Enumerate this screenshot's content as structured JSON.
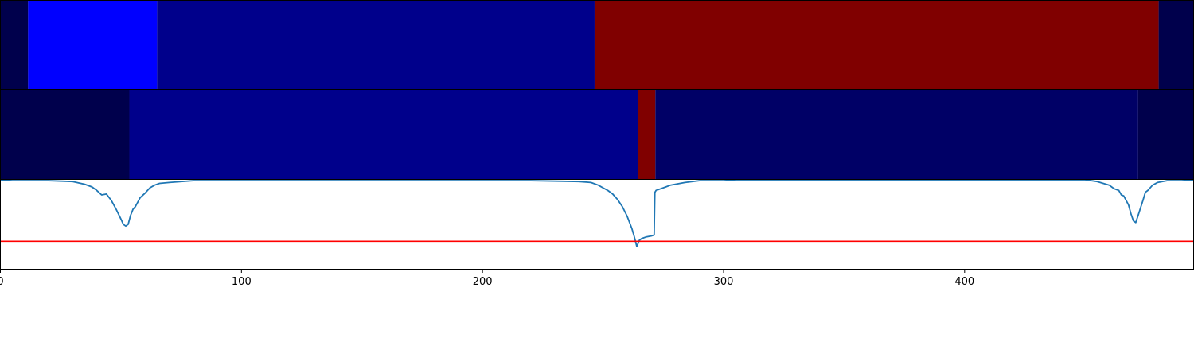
{
  "chart_data": {
    "type": "heatmap",
    "title": "",
    "xlabel": "",
    "ylabel": "",
    "xlim": [
      0,
      495
    ],
    "grid": false,
    "x_ticks": [
      {
        "value": 0,
        "label": "0"
      },
      {
        "value": 100,
        "label": "100"
      },
      {
        "value": 200,
        "label": "200"
      },
      {
        "value": 300,
        "label": "300"
      },
      {
        "value": 400,
        "label": "400"
      }
    ],
    "segment_rows": [
      {
        "name": "",
        "segments": [
          {
            "start": 0,
            "end": 11.5,
            "color": "#00004c"
          },
          {
            "start": 11.5,
            "end": 65,
            "color": "#0000ff"
          },
          {
            "start": 65,
            "end": 246.5,
            "color": "#00008b"
          },
          {
            "start": 246.5,
            "end": 480.5,
            "color": "#800000"
          },
          {
            "start": 480.5,
            "end": 495,
            "color": "#00004c"
          }
        ]
      },
      {
        "name": "",
        "segments": [
          {
            "start": 0,
            "end": 53.5,
            "color": "#00004c"
          },
          {
            "start": 53.5,
            "end": 264.5,
            "color": "#00008b"
          },
          {
            "start": 264.5,
            "end": 271.7,
            "color": "#800000"
          },
          {
            "start": 271.7,
            "end": 472,
            "color": "#000066"
          },
          {
            "start": 472,
            "end": 495,
            "color": "#00004c"
          }
        ]
      }
    ],
    "signal": {
      "name": "",
      "color": "#1f77b4",
      "ylim": [
        -1.0,
        0.0
      ],
      "x": [
        0,
        5,
        10,
        20,
        30,
        35,
        38,
        40,
        42,
        44,
        46,
        48,
        50,
        51,
        52,
        53,
        54,
        55,
        56,
        57,
        58,
        60,
        62,
        64,
        66,
        70,
        80,
        100,
        112,
        207,
        220,
        240,
        245,
        248,
        250,
        252,
        254,
        256,
        258,
        260,
        262,
        263,
        264,
        265,
        266,
        268,
        270,
        271.2,
        271.5,
        272,
        274,
        276,
        278,
        280,
        284,
        290,
        300,
        305,
        450,
        455,
        460,
        462,
        464,
        465,
        466,
        468,
        469,
        470,
        471,
        472,
        474,
        475,
        476,
        478,
        480,
        484,
        490,
        495
      ],
      "y": [
        0.0,
        -0.01,
        -0.01,
        -0.01,
        -0.02,
        -0.05,
        -0.08,
        -0.12,
        -0.17,
        -0.16,
        -0.23,
        -0.33,
        -0.44,
        -0.5,
        -0.52,
        -0.5,
        -0.4,
        -0.33,
        -0.3,
        -0.25,
        -0.2,
        -0.15,
        -0.09,
        -0.06,
        -0.04,
        -0.03,
        -0.01,
        -0.01,
        -0.01,
        -0.01,
        -0.01,
        -0.02,
        -0.03,
        -0.06,
        -0.09,
        -0.12,
        -0.16,
        -0.22,
        -0.3,
        -0.41,
        -0.55,
        -0.64,
        -0.75,
        -0.68,
        -0.66,
        -0.64,
        -0.63,
        -0.62,
        -0.14,
        -0.12,
        -0.1,
        -0.08,
        -0.06,
        -0.05,
        -0.03,
        -0.01,
        -0.01,
        0.0,
        0.0,
        -0.02,
        -0.06,
        -0.1,
        -0.12,
        -0.17,
        -0.18,
        -0.28,
        -0.38,
        -0.46,
        -0.48,
        -0.4,
        -0.23,
        -0.14,
        -0.12,
        -0.06,
        -0.03,
        -0.01,
        -0.01,
        0.0
      ]
    },
    "threshold": {
      "value": -0.69,
      "color": "#ff0000"
    }
  }
}
